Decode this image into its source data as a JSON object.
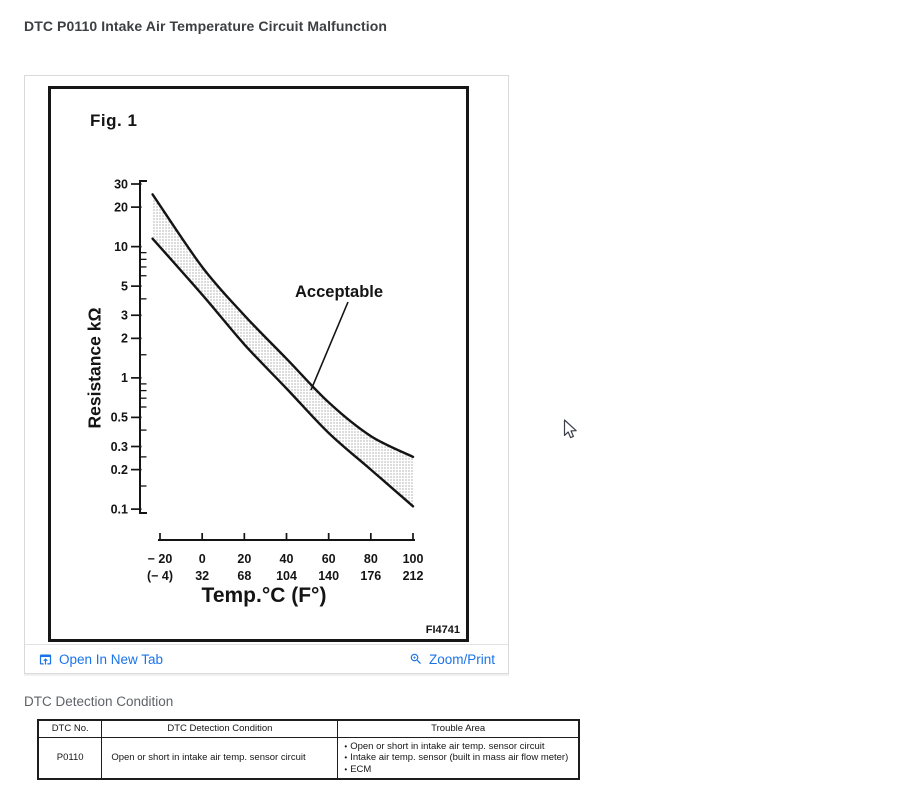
{
  "page": {
    "title": "DTC P0110 Intake Air Temperature Circuit Malfunction"
  },
  "figure_viewer": {
    "open_in_new_tab_label": "Open In New Tab",
    "zoom_print_label": "Zoom/Print"
  },
  "detection_section": {
    "heading": "DTC Detection Condition"
  },
  "dtc_table": {
    "bullet": "•",
    "headers": [
      "DTC No.",
      "DTC Detection Condition",
      "Trouble Area"
    ],
    "rows": [
      {
        "dtc_no": "P0110",
        "detection_condition": "Open or short in intake air temp. sensor circuit",
        "trouble_areas": [
          "Open or short in intake air temp. sensor circuit",
          "Intake air temp. sensor (built in mass air flow meter)",
          "ECM"
        ]
      }
    ]
  },
  "chart_data": {
    "type": "area",
    "title": "Fig. 1",
    "annotation": "Acceptable",
    "figure_code": "FI4741",
    "xlabel": "Temp.°C (F°)",
    "ylabel": "Resistance kΩ",
    "y_scale": "log",
    "xlim": [
      -20,
      100
    ],
    "ylim": [
      0.1,
      30
    ],
    "grid": "off",
    "legend": "none",
    "x_tick_values": [
      -20,
      0,
      20,
      40,
      60,
      80,
      100
    ],
    "x_tick_labels_celsius": [
      "− 20",
      "0",
      "20",
      "40",
      "60",
      "80",
      "100"
    ],
    "x_tick_labels_fahrenheit": [
      "(− 4)",
      "32",
      "68",
      "104",
      "140",
      "176",
      "212"
    ],
    "y_tick_values": [
      30,
      20,
      10,
      5,
      3,
      2,
      1,
      0.5,
      0.3,
      0.2,
      0.1
    ],
    "y_minor_tick_values": [
      9,
      8,
      7,
      6,
      4,
      1.5,
      0.9,
      0.8,
      0.7,
      0.6,
      0.4,
      0.25,
      0.15
    ],
    "series": [
      {
        "name": "acceptable upper limit (kΩ)",
        "x": [
          -23.5,
          0,
          20,
          40,
          60,
          80,
          100
        ],
        "values": [
          25,
          7.0,
          3.0,
          1.4,
          0.65,
          0.36,
          0.25
        ]
      },
      {
        "name": "acceptable lower limit (kΩ)",
        "x": [
          -23.5,
          0,
          20,
          40,
          60,
          80,
          100
        ],
        "values": [
          11.5,
          4.3,
          1.8,
          0.83,
          0.38,
          0.2,
          0.105
        ]
      }
    ],
    "band_fill_style": "stipple"
  },
  "colors": {
    "link_blue": "#1a73e8",
    "title_text": "#3c4043",
    "muted_text": "#5f6368",
    "scan_ink": "#141414",
    "card_border": "#d9d9d9"
  }
}
